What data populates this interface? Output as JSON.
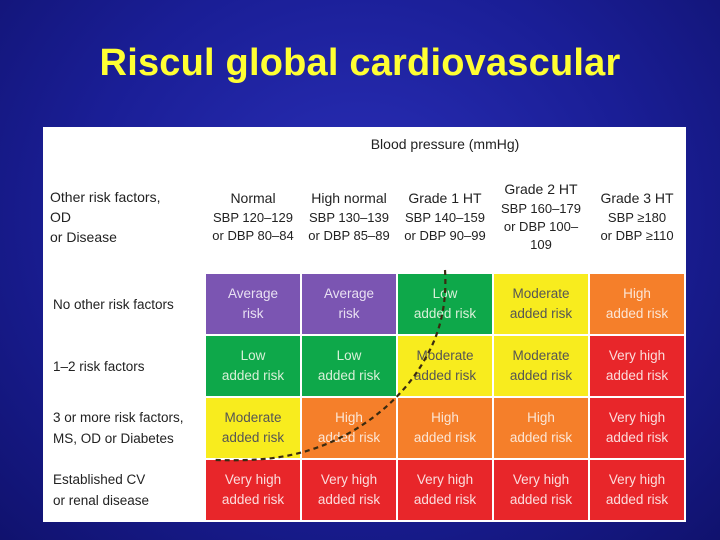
{
  "slide": {
    "title": "Riscul global cardiovascular"
  },
  "table": {
    "bp_header": "Blood pressure (mmHg)",
    "corner": {
      "line1": "Other risk factors,",
      "line2": "OD",
      "line3": "or Disease"
    },
    "columns": [
      {
        "title": "Normal",
        "line2": "SBP 120–129",
        "line3": "or DBP 80–84"
      },
      {
        "title": "High normal",
        "line2": "SBP 130–139",
        "line3": "or DBP 85–89"
      },
      {
        "title": "Grade 1 HT",
        "line2": "SBP 140–159",
        "line3": "or DBP 90–99"
      },
      {
        "title": "Grade 2 HT",
        "line2": "SBP 160–179",
        "line3": "or DBP 100–109"
      },
      {
        "title": "Grade 3 HT",
        "line2": "SBP ≥180",
        "line3": "or DBP ≥110"
      }
    ],
    "rows": [
      {
        "label1": "No other risk factors",
        "label2": "",
        "cells": [
          {
            "l1": "Average",
            "l2": "risk",
            "color": "#7b55b2"
          },
          {
            "l1": "Average",
            "l2": "risk",
            "color": "#7b55b2"
          },
          {
            "l1": "Low",
            "l2": "added risk",
            "color": "#0ea84a"
          },
          {
            "l1": "Moderate",
            "l2": "added risk",
            "color": "#f8ec1e"
          },
          {
            "l1": "High",
            "l2": "added risk",
            "color": "#f57f2a"
          }
        ]
      },
      {
        "label1": "1–2 risk factors",
        "label2": "",
        "cells": [
          {
            "l1": "Low",
            "l2": "added risk",
            "color": "#0ea84a"
          },
          {
            "l1": "Low",
            "l2": "added risk",
            "color": "#0ea84a"
          },
          {
            "l1": "Moderate",
            "l2": "added risk",
            "color": "#f8ec1e"
          },
          {
            "l1": "Moderate",
            "l2": "added risk",
            "color": "#f8ec1e"
          },
          {
            "l1": "Very high",
            "l2": "added risk",
            "color": "#e8262a"
          }
        ]
      },
      {
        "label1": "3 or more risk factors,",
        "label2": "MS, OD or Diabetes",
        "cells": [
          {
            "l1": "Moderate",
            "l2": "added risk",
            "color": "#f8ec1e"
          },
          {
            "l1": "High",
            "l2": "added risk",
            "color": "#f57f2a"
          },
          {
            "l1": "High",
            "l2": "added risk",
            "color": "#f57f2a"
          },
          {
            "l1": "High",
            "l2": "added risk",
            "color": "#f57f2a"
          },
          {
            "l1": "Very high",
            "l2": "added risk",
            "color": "#e8262a"
          }
        ]
      },
      {
        "label1": "Established CV",
        "label2": "or renal disease",
        "cells": [
          {
            "l1": "Very high",
            "l2": "added risk",
            "color": "#e8262a"
          },
          {
            "l1": "Very high",
            "l2": "added risk",
            "color": "#e8262a"
          },
          {
            "l1": "Very high",
            "l2": "added risk",
            "color": "#e8262a"
          },
          {
            "l1": "Very high",
            "l2": "added risk",
            "color": "#e8262a"
          },
          {
            "l1": "Very high",
            "l2": "added risk",
            "color": "#e8262a"
          }
        ]
      }
    ]
  }
}
